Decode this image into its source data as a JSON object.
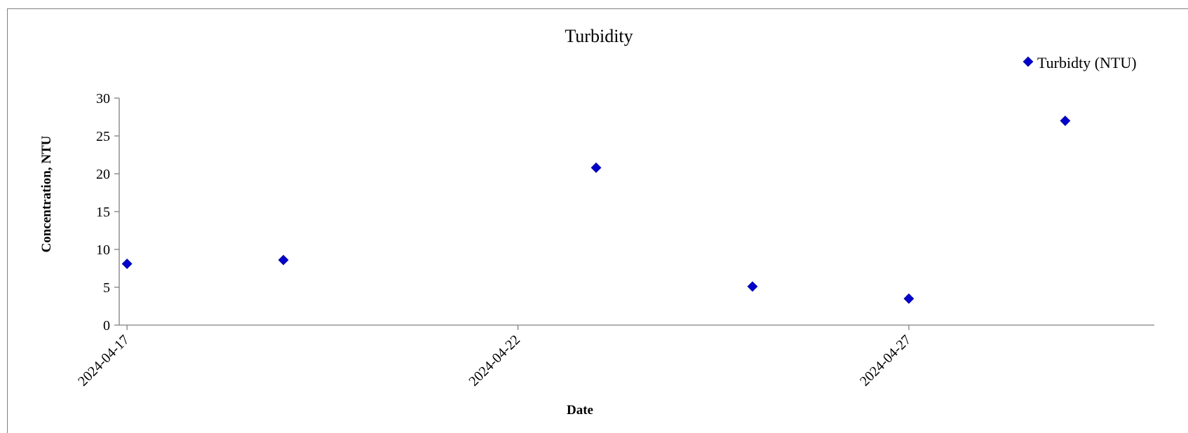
{
  "chart_data": {
    "type": "scatter",
    "title": "Turbidity",
    "xlabel": "Date",
    "ylabel": "Concentration, NTU",
    "x_axis_type": "date",
    "xlim": [
      "2024-04-17",
      "2024-04-30"
    ],
    "ylim": [
      0,
      30
    ],
    "x_ticks": [
      "2024-04-17",
      "2024-04-22",
      "2024-04-27"
    ],
    "y_ticks": [
      0,
      5,
      10,
      15,
      20,
      25,
      30
    ],
    "grid": false,
    "legend_position": "top-right",
    "series": [
      {
        "name": "Turbidty (NTU)",
        "marker": "diamond",
        "color": "#0000cc",
        "points": [
          {
            "x": "2024-04-17",
            "y": 8.1
          },
          {
            "x": "2024-04-19",
            "y": 8.6
          },
          {
            "x": "2024-04-23",
            "y": 20.8
          },
          {
            "x": "2024-04-25",
            "y": 5.1
          },
          {
            "x": "2024-04-27",
            "y": 3.5
          },
          {
            "x": "2024-04-29",
            "y": 27.0
          }
        ]
      }
    ]
  }
}
